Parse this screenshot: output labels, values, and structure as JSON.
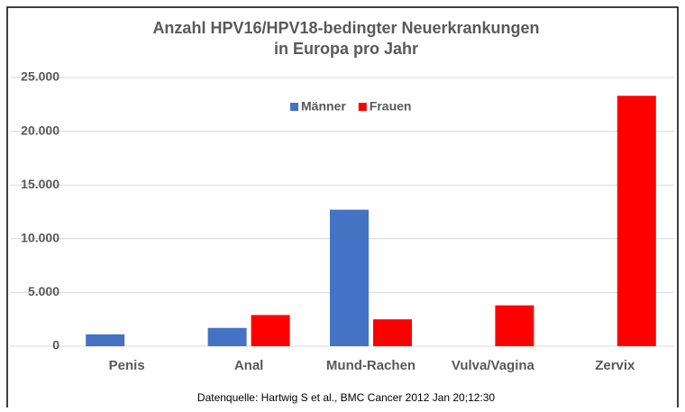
{
  "chart_data": {
    "type": "bar",
    "title": [
      "Anzahl HPV16/HPV18-bedingter Neuerkrankungen",
      "in Europa pro Jahr"
    ],
    "categories": [
      "Penis",
      "Anal",
      "Mund-Rachen",
      "Vulva/Vagina",
      "Zervix"
    ],
    "series": [
      {
        "name": "Männer",
        "color": "#4472c4",
        "values": [
          1100,
          1700,
          12700,
          null,
          null
        ]
      },
      {
        "name": "Frauen",
        "color": "#ff0000",
        "values": [
          null,
          2900,
          2500,
          3800,
          23300
        ]
      }
    ],
    "ylim": [
      0,
      25000
    ],
    "yticks": [
      0,
      {
        "value": 5000,
        "label": "5.000"
      },
      {
        "value": 10000,
        "label": "10.000"
      },
      {
        "value": 15000,
        "label": "15.000"
      },
      {
        "value": 20000,
        "label": "20.000"
      },
      {
        "value": 25000,
        "label": "25.000"
      }
    ],
    "grid": true,
    "legend": "top",
    "source": "Datenquelle: Hartwig S et al., BMC Cancer 2012 Jan 20;12:30"
  }
}
